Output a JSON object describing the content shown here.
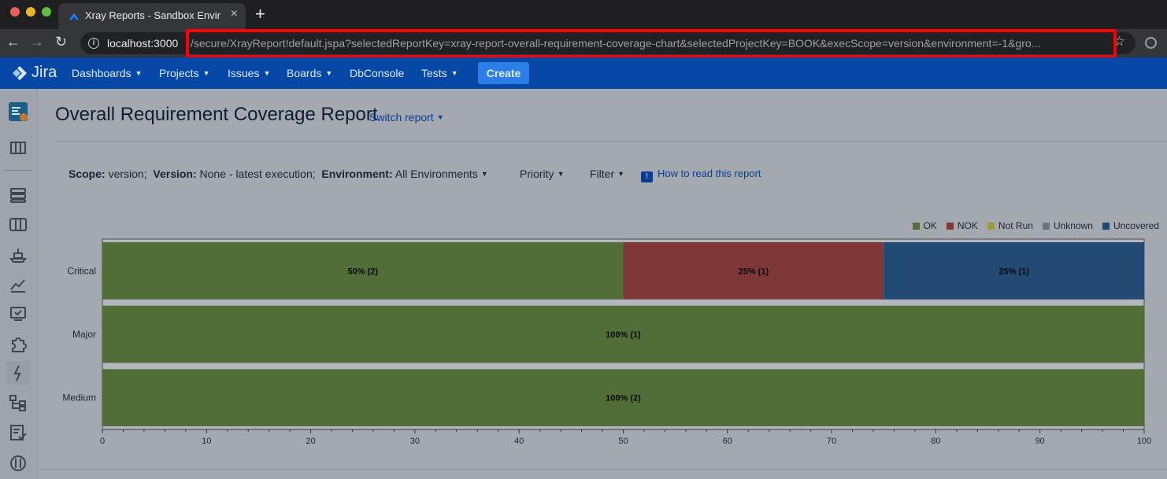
{
  "browser": {
    "tab_title": "Xray Reports - Sandbox Enviro",
    "url_host": "localhost:3000",
    "url_path": "/secure/XrayReport!default.jspa?selectedReportKey=xray-report-overall-requirement-coverage-chart&selectedProjectKey=BOOK&execScope=version&environment=-1&gro..."
  },
  "jira_nav": {
    "logo_text": "Jira",
    "items": [
      {
        "label": "Dashboards"
      },
      {
        "label": "Projects"
      },
      {
        "label": "Issues"
      },
      {
        "label": "Boards"
      },
      {
        "label": "DbConsole"
      },
      {
        "label": "Tests"
      }
    ],
    "create_label": "Create"
  },
  "report": {
    "title": "Overall Requirement Coverage Report",
    "switch_label": "Switch report"
  },
  "filters": {
    "scope_label": "Scope:",
    "scope_value": "version;",
    "version_label": "Version:",
    "version_value": "None - latest execution;",
    "environment_label": "Environment:",
    "environment_value": "All Environments",
    "priority_label": "Priority",
    "filter_label": "Filter",
    "howto_label": "How to read this report"
  },
  "colors": {
    "ok": "#516d38",
    "nok": "#7e3838",
    "not_run": "#9c9a3c",
    "unknown": "#6f7378",
    "uncovered": "#224a73"
  },
  "chart_data": {
    "type": "bar",
    "orientation": "horizontal",
    "stacked": true,
    "categories": [
      "Critical",
      "Major",
      "Medium"
    ],
    "series": [
      {
        "name": "OK",
        "values": [
          50,
          100,
          100
        ],
        "counts": [
          2,
          1,
          2
        ],
        "labels": [
          "50% (2)",
          "100% (1)",
          "100% (2)"
        ]
      },
      {
        "name": "NOK",
        "values": [
          25,
          0,
          0
        ],
        "counts": [
          1,
          0,
          0
        ],
        "labels": [
          "25% (1)",
          "",
          ""
        ]
      },
      {
        "name": "Not Run",
        "values": [
          0,
          0,
          0
        ],
        "counts": [
          0,
          0,
          0
        ],
        "labels": [
          "",
          "",
          ""
        ]
      },
      {
        "name": "Unknown",
        "values": [
          0,
          0,
          0
        ],
        "counts": [
          0,
          0,
          0
        ],
        "labels": [
          "",
          "",
          ""
        ]
      },
      {
        "name": "Uncovered",
        "values": [
          25,
          0,
          0
        ],
        "counts": [
          1,
          0,
          0
        ],
        "labels": [
          "25% (1)",
          "",
          ""
        ]
      }
    ],
    "xlim": [
      0,
      100
    ],
    "xticks": [
      0,
      10,
      20,
      30,
      40,
      50,
      60,
      70,
      80,
      90,
      100
    ],
    "legend_position": "top-right",
    "grid": false
  }
}
